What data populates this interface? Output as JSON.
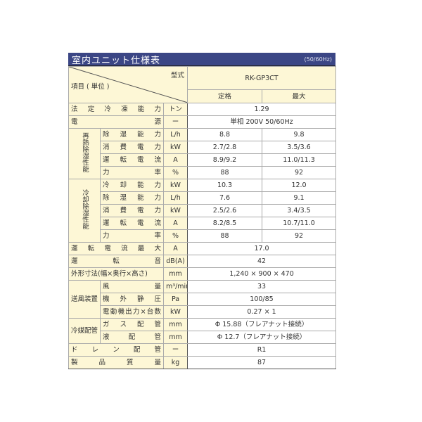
{
  "title": "室内ユニット仕様表",
  "frequency": "(50/60Hz)",
  "header": {
    "type_label": "型式",
    "item_label": "項目 ( 単位 )",
    "model": "RK-GP3CT",
    "rated": "定格",
    "max": "最大"
  },
  "rows": [
    {
      "label": "法定冷凍能力",
      "unit": "トン",
      "value": "1.29"
    },
    {
      "label": "電源",
      "unit": "ー",
      "value": "単相 200V 50/60Hz"
    },
    {
      "group": "再熱除湿性能",
      "vertical": true,
      "items": [
        {
          "label": "除湿能力",
          "unit": "L/h",
          "rated": "8.8",
          "max": "9.8"
        },
        {
          "label": "消費電力",
          "unit": "kW",
          "rated": "2.7/2.8",
          "max": "3.5/3.6"
        },
        {
          "label": "運転電流",
          "unit": "A",
          "rated": "8.9/9.2",
          "max": "11.0/11.3"
        },
        {
          "label": "力率",
          "unit": "%",
          "rated": "88",
          "max": "92"
        }
      ]
    },
    {
      "group": "冷却除湿性能",
      "vertical": true,
      "items": [
        {
          "label": "冷却能力",
          "unit": "kW",
          "rated": "10.3",
          "max": "12.0"
        },
        {
          "label": "除湿能力",
          "unit": "L/h",
          "rated": "7.6",
          "max": "9.1"
        },
        {
          "label": "消費電力",
          "unit": "kW",
          "rated": "2.5/2.6",
          "max": "3.4/3.5"
        },
        {
          "label": "運転電流",
          "unit": "A",
          "rated": "8.2/8.5",
          "max": "10.7/11.0"
        },
        {
          "label": "力率",
          "unit": "%",
          "rated": "88",
          "max": "92"
        }
      ]
    },
    {
      "label": "運転電流最大",
      "unit": "A",
      "value": "17.0"
    },
    {
      "label": "運転音",
      "unit": "dB(A)",
      "value": "42"
    },
    {
      "label": "外形寸法(幅×奥行×高さ)",
      "unit": "mm",
      "value": "1,240 × 900 × 470",
      "nojust": true
    },
    {
      "group": "送風装置",
      "vertical": false,
      "items": [
        {
          "label": "風量",
          "unit": "m³/min",
          "value": "33"
        },
        {
          "label": "機外静圧",
          "unit": "Pa",
          "value": "100/85"
        },
        {
          "label": "電動機出力×台数",
          "unit": "kW",
          "value": "0.27 × 1"
        }
      ]
    },
    {
      "group": "冷媒配管",
      "vertical": false,
      "items": [
        {
          "label": "ガス配管",
          "unit": "mm",
          "value": "Φ 15.88（フレアナット接続）"
        },
        {
          "label": "液配管",
          "unit": "mm",
          "value": "Φ 12.7（フレアナット接続）"
        }
      ]
    },
    {
      "label": "ドレン配管",
      "unit": "ー",
      "value": "R1"
    },
    {
      "label": "製品質量",
      "unit": "kg",
      "value": "87"
    }
  ],
  "colors": {
    "title_bar": "#3b4685",
    "label_bg": "#fdf7d6"
  }
}
